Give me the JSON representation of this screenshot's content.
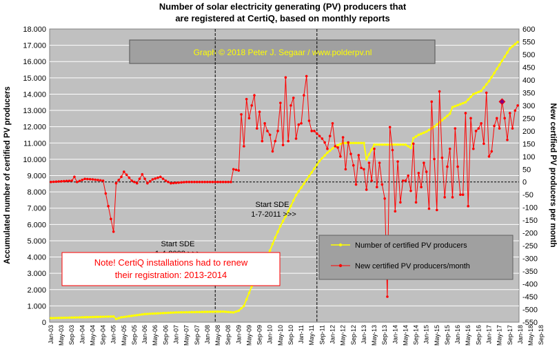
{
  "chart_data": {
    "type": "line",
    "title_line1": "Number of solar electricity generating (PV) producers that",
    "title_line2": "are registered at CertiQ, based on monthly reports",
    "credit": "Graph  © 2018 Peter J. Segaar / www.polderpv.nl",
    "ylabel_left": "Accumulated number of certified PV producers",
    "ylabel_right": "New certified PV producers per month",
    "ylim_left": [
      0,
      18000
    ],
    "ylim_right": [
      -550,
      600
    ],
    "left_ticks": [
      "0",
      "1.000",
      "2.000",
      "3.000",
      "4.000",
      "5.000",
      "6.000",
      "7.000",
      "8.000",
      "9.000",
      "10.000",
      "11.000",
      "12.000",
      "13.000",
      "14.000",
      "15.000",
      "16.000",
      "17.000",
      "18.000"
    ],
    "right_ticks": [
      "-550",
      "-500",
      "-450",
      "-400",
      "-350",
      "-300",
      "-250",
      "-200",
      "-150",
      "-100",
      "-50",
      "0",
      "50",
      "100",
      "150",
      "200",
      "250",
      "300",
      "350",
      "400",
      "450",
      "500",
      "550",
      "600"
    ],
    "x_ticks": [
      "Jan-03",
      "May-03",
      "Sep-03",
      "Jan-04",
      "May-04",
      "Sep-04",
      "Jan-05",
      "May-05",
      "Sep-05",
      "Jan-06",
      "May-06",
      "Sep-06",
      "Jan-07",
      "May-07",
      "Sep-07",
      "Jan-08",
      "May-08",
      "Sep-08",
      "Jan-09",
      "May-09",
      "Sep-09",
      "Jan-10",
      "May-10",
      "Sep-10",
      "Jan-11",
      "May-11",
      "Sep-11",
      "Jan-12",
      "May-12",
      "Sep-12",
      "Jan-13",
      "May-13",
      "Sep-13",
      "Jan-14",
      "May-14",
      "Sep-14",
      "Jan-15",
      "May-15",
      "Sep-15",
      "Jan-16",
      "May-16",
      "Sep-16",
      "Jan-17",
      "May-17",
      "Sep-17",
      "Jan-18",
      "May-18",
      "Sep-18"
    ],
    "annotation_sde1": [
      "Start SDE",
      "1-4-2008  >>>"
    ],
    "annotation_sde2": [
      "Start SDE",
      "1-7-2011  >>>"
    ],
    "note": [
      "Note! CertiQ installations  had to renew",
      "their registration: 2013-2014"
    ],
    "legend_position": "bottom-right",
    "grid": true,
    "series": [
      {
        "name": "Number of certified PV producers",
        "color": "#ffff00",
        "axis": "left",
        "anchors": [
          [
            0,
            250
          ],
          [
            24,
            350
          ],
          [
            25,
            200
          ],
          [
            27,
            300
          ],
          [
            36,
            500
          ],
          [
            48,
            600
          ],
          [
            66,
            650
          ],
          [
            70,
            600
          ],
          [
            72,
            700
          ],
          [
            74,
            1000
          ],
          [
            76,
            1800
          ],
          [
            78,
            2600
          ],
          [
            80,
            3300
          ],
          [
            82,
            3800
          ],
          [
            84,
            4400
          ],
          [
            86,
            5200
          ],
          [
            88,
            5900
          ],
          [
            91,
            6800
          ],
          [
            94,
            7800
          ],
          [
            97,
            8500
          ],
          [
            100,
            9200
          ],
          [
            103,
            9900
          ],
          [
            106,
            10400
          ],
          [
            109,
            10800
          ],
          [
            112,
            11000
          ],
          [
            120,
            11000
          ],
          [
            121,
            10000
          ],
          [
            124,
            10900
          ],
          [
            136,
            10900
          ],
          [
            138,
            10700
          ],
          [
            139,
            11300
          ],
          [
            141,
            11500
          ],
          [
            144,
            11700
          ],
          [
            147,
            12000
          ],
          [
            150,
            12400
          ],
          [
            153,
            12800
          ],
          [
            154,
            13200
          ],
          [
            159,
            13500
          ],
          [
            162,
            14000
          ],
          [
            165,
            14200
          ],
          [
            168,
            14800
          ],
          [
            172,
            15800
          ],
          [
            176,
            16800
          ],
          [
            179,
            17200
          ]
        ]
      },
      {
        "name": "New certified PV producers/month",
        "color": "#ff0000",
        "axis": "right",
        "anchors": [
          [
            0,
            0
          ],
          [
            8,
            5
          ],
          [
            9,
            20
          ],
          [
            10,
            0
          ],
          [
            13,
            12
          ],
          [
            16,
            10
          ],
          [
            20,
            5
          ],
          [
            24,
            -195
          ],
          [
            25,
            -5
          ],
          [
            27,
            20
          ],
          [
            28,
            40
          ],
          [
            31,
            5
          ],
          [
            33,
            -5
          ],
          [
            35,
            30
          ],
          [
            37,
            -5
          ],
          [
            39,
            10
          ],
          [
            42,
            20
          ],
          [
            44,
            5
          ],
          [
            46,
            -5
          ],
          [
            52,
            0
          ],
          [
            58,
            0
          ],
          [
            66,
            0
          ],
          [
            69,
            0
          ],
          [
            70,
            50
          ],
          [
            72,
            45
          ],
          [
            73,
            265
          ],
          [
            74,
            140
          ],
          [
            75,
            325
          ],
          [
            76,
            250
          ],
          [
            77,
            300
          ],
          [
            78,
            340
          ],
          [
            79,
            210
          ],
          [
            80,
            275
          ],
          [
            81,
            160
          ],
          [
            82,
            230
          ],
          [
            83,
            200
          ],
          [
            84,
            185
          ],
          [
            85,
            120
          ],
          [
            87,
            200
          ],
          [
            88,
            310
          ],
          [
            89,
            145
          ],
          [
            90,
            410
          ],
          [
            91,
            160
          ],
          [
            92,
            300
          ],
          [
            93,
            330
          ],
          [
            94,
            170
          ],
          [
            95,
            225
          ],
          [
            96,
            230
          ],
          [
            97,
            340
          ],
          [
            98,
            415
          ],
          [
            99,
            240
          ],
          [
            100,
            200
          ],
          [
            101,
            200
          ],
          [
            102,
            190
          ],
          [
            104,
            170
          ],
          [
            105,
            155
          ],
          [
            106,
            130
          ],
          [
            108,
            230
          ],
          [
            109,
            140
          ],
          [
            110,
            135
          ],
          [
            111,
            100
          ],
          [
            112,
            175
          ],
          [
            113,
            50
          ],
          [
            114,
            155
          ],
          [
            116,
            65
          ],
          [
            117,
            -10
          ],
          [
            118,
            105
          ],
          [
            119,
            55
          ],
          [
            120,
            50
          ],
          [
            121,
            -30
          ],
          [
            122,
            75
          ],
          [
            123,
            5
          ],
          [
            124,
            130
          ],
          [
            125,
            -20
          ],
          [
            126,
            75
          ],
          [
            127,
            -10
          ],
          [
            128,
            -65
          ],
          [
            129,
            -450
          ],
          [
            130,
            215
          ],
          [
            131,
            125
          ],
          [
            132,
            -115
          ],
          [
            133,
            80
          ],
          [
            134,
            -80
          ],
          [
            135,
            5
          ],
          [
            136,
            5
          ],
          [
            137,
            25
          ],
          [
            138,
            -35
          ],
          [
            139,
            150
          ],
          [
            140,
            -80
          ],
          [
            141,
            35
          ],
          [
            142,
            -20
          ],
          [
            143,
            75
          ],
          [
            144,
            40
          ],
          [
            145,
            -105
          ],
          [
            146,
            315
          ],
          [
            147,
            90
          ],
          [
            148,
            -110
          ],
          [
            149,
            355
          ],
          [
            150,
            95
          ],
          [
            151,
            -60
          ],
          [
            152,
            60
          ],
          [
            153,
            130
          ],
          [
            154,
            -60
          ],
          [
            155,
            210
          ],
          [
            156,
            60
          ],
          [
            157,
            -50
          ],
          [
            158,
            -50
          ],
          [
            159,
            270
          ],
          [
            160,
            -95
          ],
          [
            161,
            250
          ],
          [
            162,
            130
          ],
          [
            163,
            200
          ],
          [
            164,
            210
          ],
          [
            165,
            230
          ],
          [
            166,
            150
          ],
          [
            167,
            350
          ],
          [
            168,
            100
          ],
          [
            169,
            120
          ],
          [
            170,
            220
          ],
          [
            171,
            250
          ],
          [
            172,
            210
          ],
          [
            173,
            315
          ],
          [
            174,
            250
          ],
          [
            175,
            165
          ],
          [
            176,
            270
          ],
          [
            177,
            210
          ],
          [
            178,
            280
          ],
          [
            179,
            300
          ]
        ],
        "highlight_index": 173
      }
    ]
  }
}
